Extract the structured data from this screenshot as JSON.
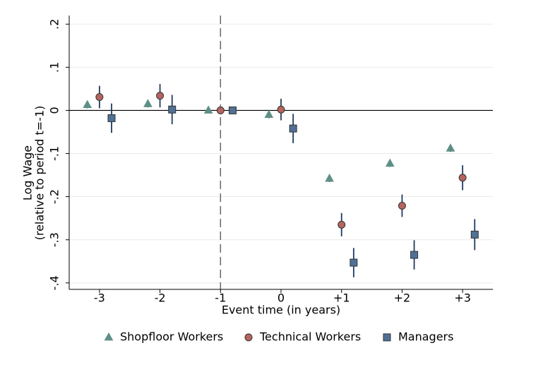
{
  "chart_data": {
    "type": "scatter",
    "xlabel": "Event time (in years)",
    "ylabel": [
      "Log Wage",
      "(relative to period t=-1)"
    ],
    "xlim": [
      -3.5,
      3.5
    ],
    "ylim": [
      -0.415,
      0.22
    ],
    "xticks": [
      -3,
      -2,
      -1,
      0,
      {
        "value": 1,
        "label": "+1"
      },
      {
        "value": 2,
        "label": "+2"
      },
      {
        "value": 3,
        "label": "+3"
      }
    ],
    "yticks": [
      {
        "value": 0.2,
        "label": ".2"
      },
      {
        "value": 0.1,
        "label": ".1"
      },
      0,
      {
        "value": -0.1,
        "label": "-.1"
      },
      {
        "value": -0.2,
        "label": "-.2"
      },
      {
        "value": -0.3,
        "label": "-.3"
      },
      {
        "value": -0.4,
        "label": "-.4"
      }
    ],
    "grid": true,
    "vline": -1,
    "hline": 0,
    "legend": "bottom",
    "series": [
      {
        "name": "Shopfloor Workers",
        "color": "#5e8f87",
        "marker": "triangle",
        "x": [
          -3.2,
          -2.2,
          -1.2,
          -0.2,
          0.8,
          1.8,
          2.8
        ],
        "values": [
          0.013,
          0.015,
          0.0,
          -0.01,
          -0.158,
          -0.123,
          -0.088
        ],
        "errors": [
          0.008,
          0.008,
          0.0,
          0.008,
          0.008,
          0.008,
          0.008
        ]
      },
      {
        "name": "Technical Workers",
        "color": "#b5645e",
        "marker": "circle",
        "x": [
          -3,
          -2,
          -1,
          0,
          1,
          2,
          3
        ],
        "values": [
          0.031,
          0.034,
          0.0,
          0.002,
          -0.265,
          -0.221,
          -0.156
        ],
        "errors": [
          0.026,
          0.027,
          0.0,
          0.025,
          0.027,
          0.026,
          0.029
        ]
      },
      {
        "name": "Managers",
        "color": "#4f7196",
        "marker": "square",
        "x": [
          -2.8,
          -1.8,
          -0.8,
          0.2,
          1.2,
          2.2,
          3.2
        ],
        "values": [
          -0.018,
          0.002,
          0.0,
          -0.042,
          -0.353,
          -0.335,
          -0.288
        ],
        "errors": [
          0.034,
          0.034,
          0.0,
          0.034,
          0.034,
          0.034,
          0.036
        ]
      }
    ]
  }
}
